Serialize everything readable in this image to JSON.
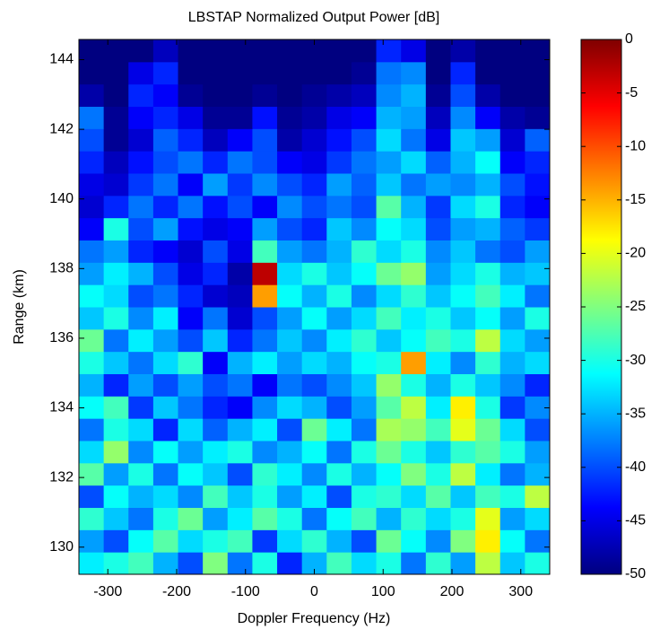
{
  "chart_data": {
    "type": "heatmap",
    "title": "LBSTAP Normalized Output Power [dB]",
    "x_label": "Doppler Frequency (Hz)",
    "y_label": "Range (km)",
    "colormap": "jet",
    "x": [
      -324,
      -288,
      -252,
      -216,
      -180,
      -144,
      -108,
      -72,
      -36,
      0,
      36,
      72,
      108,
      144,
      180,
      216,
      252,
      288,
      324
    ],
    "y": [
      129.54,
      130.18,
      130.82,
      131.46,
      132.1,
      132.74,
      133.38,
      134.02,
      134.66,
      135.3,
      135.94,
      136.58,
      137.22,
      137.86,
      138.5,
      139.14,
      139.78,
      140.42,
      141.06,
      141.7,
      142.34,
      142.98,
      143.62,
      144.26
    ],
    "z": [
      [
        -32,
        -30,
        -28,
        -35,
        -40,
        -25,
        -38,
        -30,
        -42,
        -35,
        -28,
        -33,
        -30,
        -38,
        -29,
        -36,
        -22,
        -34,
        -30
      ],
      [
        -36,
        -40,
        -31,
        -27,
        -33,
        -30,
        -28,
        -41,
        -33,
        -29,
        -35,
        -40,
        -26,
        -31,
        -37,
        -25,
        -18,
        -31,
        -38
      ],
      [
        -29,
        -34,
        -38,
        -30,
        -26,
        -36,
        -32,
        -27,
        -30,
        -38,
        -31,
        -28,
        -35,
        -29,
        -33,
        -30,
        -20,
        -36,
        -33
      ],
      [
        -40,
        -31,
        -35,
        -33,
        -37,
        -28,
        -34,
        -30,
        -36,
        -32,
        -40,
        -30,
        -29,
        -33,
        -27,
        -34,
        -28,
        -30,
        -22
      ],
      [
        -27,
        -36,
        -30,
        -38,
        -31,
        -34,
        -40,
        -29,
        -32,
        -37,
        -30,
        -35,
        -31,
        -25,
        -30,
        -22,
        -32,
        -38,
        -35
      ],
      [
        -33,
        -24,
        -37,
        -31,
        -36,
        -32,
        -30,
        -37,
        -35,
        -31,
        -38,
        -30,
        -26,
        -30,
        -34,
        -29,
        -27,
        -30,
        -36
      ],
      [
        -38,
        -30,
        -33,
        -42,
        -33,
        -39,
        -35,
        -32,
        -40,
        -26,
        -32,
        -38,
        -23,
        -24,
        -28,
        -20,
        -26,
        -33,
        -40
      ],
      [
        -31,
        -28,
        -41,
        -34,
        -38,
        -42,
        -44,
        -37,
        -33,
        -35,
        -40,
        -36,
        -27,
        -22,
        -32,
        -18,
        -30,
        -41,
        -37
      ],
      [
        -35,
        -42,
        -36,
        -40,
        -36,
        -40,
        -38,
        -44,
        -38,
        -40,
        -37,
        -34,
        -24,
        -30,
        -35,
        -30,
        -34,
        -37,
        -42
      ],
      [
        -30,
        -34,
        -38,
        -33,
        -29,
        -44,
        -35,
        -32,
        -36,
        -33,
        -35,
        -31,
        -30,
        -14,
        -32,
        -37,
        -29,
        -35,
        -33
      ],
      [
        -26,
        -38,
        -32,
        -36,
        -40,
        -34,
        -42,
        -38,
        -34,
        -37,
        -32,
        -29,
        -34,
        -31,
        -28,
        -30,
        -22,
        -33,
        -36
      ],
      [
        -34,
        -30,
        -37,
        -32,
        -44,
        -38,
        -46,
        -40,
        -36,
        -31,
        -36,
        -33,
        -28,
        -32,
        -30,
        -34,
        -31,
        -36,
        -30
      ],
      [
        -31,
        -33,
        -40,
        -38,
        -42,
        -46,
        -47,
        -14,
        -31,
        -35,
        -30,
        -37,
        -33,
        -29,
        -34,
        -31,
        -28,
        -32,
        -38
      ],
      [
        -36,
        -32,
        -35,
        -40,
        -45,
        -42,
        -48,
        -3,
        -33,
        -30,
        -34,
        -31,
        -26,
        -24,
        -36,
        -33,
        -30,
        -35,
        -34
      ],
      [
        -38,
        -36,
        -42,
        -44,
        -46,
        -40,
        -45,
        -28,
        -36,
        -38,
        -35,
        -29,
        -33,
        -30,
        -37,
        -34,
        -38,
        -40,
        -36
      ],
      [
        -44,
        -30,
        -40,
        -36,
        -43,
        -45,
        -44,
        -36,
        -40,
        -42,
        -34,
        -37,
        -31,
        -33,
        -40,
        -36,
        -35,
        -39,
        -41
      ],
      [
        -46,
        -42,
        -38,
        -42,
        -38,
        -43,
        -40,
        -44,
        -37,
        -40,
        -38,
        -40,
        -27,
        -35,
        -41,
        -33,
        -30,
        -42,
        -44
      ],
      [
        -45,
        -46,
        -41,
        -38,
        -44,
        -36,
        -41,
        -37,
        -40,
        -42,
        -36,
        -39,
        -34,
        -38,
        -36,
        -37,
        -35,
        -40,
        -43
      ],
      [
        -42,
        -47,
        -43,
        -40,
        -38,
        -42,
        -38,
        -40,
        -44,
        -45,
        -41,
        -38,
        -36,
        -33,
        -39,
        -35,
        -31,
        -44,
        -42
      ],
      [
        -40,
        -49,
        -46,
        -39,
        -42,
        -47,
        -44,
        -40,
        -48,
        -46,
        -43,
        -40,
        -33,
        -38,
        -45,
        -34,
        -36,
        -46,
        -39
      ],
      [
        -38,
        -49,
        -44,
        -42,
        -45,
        -49,
        -49,
        -43,
        -49,
        -48,
        -45,
        -44,
        -35,
        -36,
        -47,
        -37,
        -44,
        -48,
        -49
      ],
      [
        -48,
        -50,
        -42,
        -44,
        -49,
        -50,
        -50,
        -49,
        -50,
        -49,
        -48,
        -47,
        -37,
        -35,
        -49,
        -40,
        -48,
        -50,
        -50
      ],
      [
        -50,
        -50,
        -45,
        -42,
        -50,
        -50,
        -50,
        -50,
        -50,
        -50,
        -50,
        -49,
        -38,
        -37,
        -50,
        -42,
        -50,
        -50,
        -50
      ],
      [
        -50,
        -50,
        -50,
        -47,
        -50,
        -50,
        -50,
        -50,
        -50,
        -50,
        -50,
        -50,
        -42,
        -45,
        -50,
        -48,
        -50,
        -50,
        -50
      ]
    ],
    "xlim": [
      -342,
      342
    ],
    "ylim": [
      129.22,
      144.58
    ],
    "xticks": [
      -300,
      -200,
      -100,
      0,
      100,
      200,
      300
    ],
    "yticks": [
      130,
      132,
      134,
      136,
      138,
      140,
      142,
      144
    ],
    "clim": [
      -50,
      0
    ],
    "cticks": [
      0,
      -5,
      -10,
      -15,
      -20,
      -25,
      -30,
      -35,
      -40,
      -45,
      -50
    ]
  }
}
